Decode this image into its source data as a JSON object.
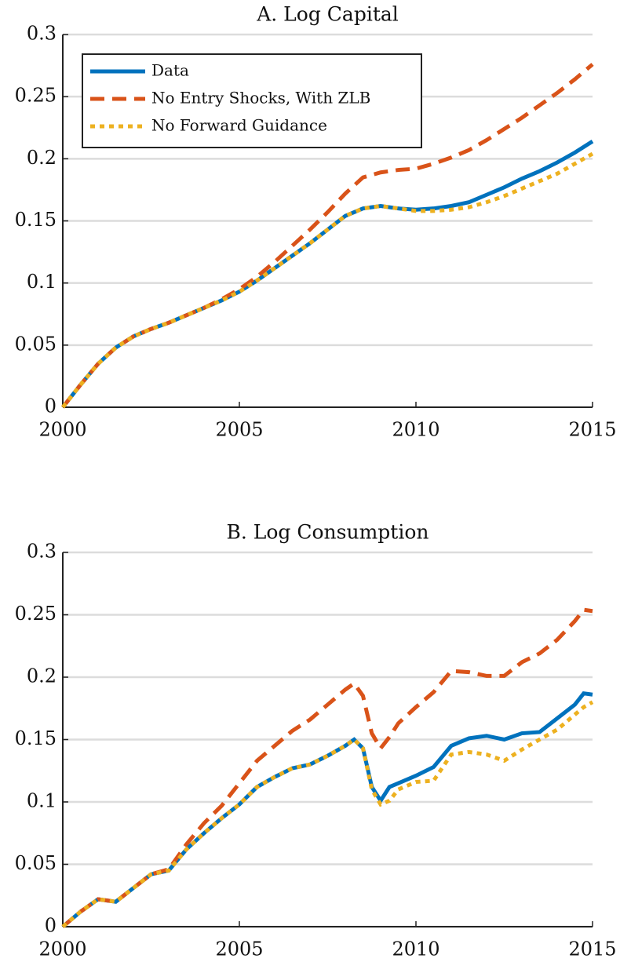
{
  "chart_data": [
    {
      "type": "line",
      "title": "A. Log Capital",
      "x": [
        2000,
        2000.5,
        2001,
        2001.5,
        2002,
        2002.5,
        2003,
        2003.5,
        2004,
        2004.5,
        2005,
        2005.5,
        2006,
        2006.5,
        2007,
        2007.5,
        2008,
        2008.5,
        2009,
        2009.5,
        2010,
        2010.5,
        2011,
        2011.5,
        2012,
        2012.5,
        2013,
        2013.5,
        2014,
        2014.5,
        2015
      ],
      "series": [
        {
          "name": "Data",
          "color": "#0072bd",
          "style": "solid",
          "values": [
            0,
            0.018,
            0.035,
            0.048,
            0.057,
            0.063,
            0.068,
            0.074,
            0.08,
            0.086,
            0.093,
            0.102,
            0.112,
            0.122,
            0.132,
            0.143,
            0.154,
            0.16,
            0.162,
            0.16,
            0.159,
            0.16,
            0.162,
            0.165,
            0.171,
            0.177,
            0.184,
            0.19,
            0.197,
            0.205,
            0.214
          ]
        },
        {
          "name": "No Entry Shocks, With ZLB",
          "color": "#d95319",
          "style": "dashed",
          "values": [
            0,
            0.018,
            0.035,
            0.048,
            0.057,
            0.063,
            0.068,
            0.074,
            0.08,
            0.087,
            0.095,
            0.105,
            0.117,
            0.13,
            0.143,
            0.157,
            0.172,
            0.185,
            0.189,
            0.191,
            0.192,
            0.196,
            0.201,
            0.207,
            0.215,
            0.224,
            0.233,
            0.243,
            0.253,
            0.264,
            0.276
          ]
        },
        {
          "name": "No Forward Guidance",
          "color": "#edb120",
          "style": "dotted",
          "values": [
            0,
            0.018,
            0.035,
            0.048,
            0.057,
            0.063,
            0.068,
            0.074,
            0.08,
            0.086,
            0.093,
            0.102,
            0.112,
            0.122,
            0.132,
            0.143,
            0.154,
            0.16,
            0.162,
            0.16,
            0.158,
            0.158,
            0.159,
            0.161,
            0.165,
            0.17,
            0.176,
            0.182,
            0.188,
            0.196,
            0.204
          ]
        }
      ],
      "xlim": [
        2000,
        2015
      ],
      "xticks": [
        2000,
        2005,
        2010,
        2015
      ],
      "ylim": [
        0,
        0.3
      ],
      "yticks": [
        0,
        0.05,
        0.1,
        0.15,
        0.2,
        0.25,
        0.3
      ],
      "grid": true,
      "legend": "upper-left"
    },
    {
      "type": "line",
      "title": "B. Log Consumption",
      "x": [
        2000,
        2000.5,
        2001,
        2001.5,
        2002,
        2002.5,
        2003,
        2003.5,
        2004,
        2004.5,
        2005,
        2005.5,
        2006,
        2006.5,
        2007,
        2007.5,
        2008,
        2008.25,
        2008.5,
        2008.75,
        2009,
        2009.25,
        2009.5,
        2010,
        2010.5,
        2011,
        2011.5,
        2012,
        2012.5,
        2013,
        2013.5,
        2014,
        2014.5,
        2014.75,
        2015
      ],
      "series": [
        {
          "color": "#0072bd",
          "style": "solid",
          "values": [
            0,
            0.012,
            0.022,
            0.02,
            0.031,
            0.042,
            0.045,
            0.062,
            0.075,
            0.087,
            0.098,
            0.112,
            0.12,
            0.127,
            0.13,
            0.137,
            0.145,
            0.15,
            0.143,
            0.112,
            0.101,
            0.112,
            0.115,
            0.121,
            0.128,
            0.145,
            0.151,
            0.153,
            0.15,
            0.155,
            0.156,
            0.167,
            0.178,
            0.187,
            0.186
          ]
        },
        {
          "color": "#d95319",
          "style": "dashed",
          "values": [
            0,
            0.012,
            0.022,
            0.02,
            0.031,
            0.042,
            0.046,
            0.066,
            0.083,
            0.097,
            0.115,
            0.133,
            0.145,
            0.157,
            0.166,
            0.178,
            0.19,
            0.195,
            0.185,
            0.155,
            0.143,
            0.152,
            0.163,
            0.176,
            0.188,
            0.205,
            0.204,
            0.201,
            0.201,
            0.212,
            0.219,
            0.23,
            0.245,
            0.254,
            0.253
          ]
        },
        {
          "color": "#edb120",
          "style": "dotted",
          "values": [
            0,
            0.012,
            0.022,
            0.02,
            0.031,
            0.042,
            0.045,
            0.062,
            0.075,
            0.087,
            0.098,
            0.112,
            0.12,
            0.127,
            0.13,
            0.137,
            0.145,
            0.15,
            0.143,
            0.11,
            0.098,
            0.101,
            0.11,
            0.116,
            0.117,
            0.138,
            0.14,
            0.138,
            0.133,
            0.142,
            0.15,
            0.158,
            0.17,
            0.176,
            0.18
          ]
        }
      ],
      "xlim": [
        2000,
        2015
      ],
      "xticks": [
        2000,
        2005,
        2010,
        2015
      ],
      "ylim": [
        0,
        0.3
      ],
      "yticks": [
        0,
        0.05,
        0.1,
        0.15,
        0.2,
        0.25,
        0.3
      ],
      "grid": true
    }
  ]
}
